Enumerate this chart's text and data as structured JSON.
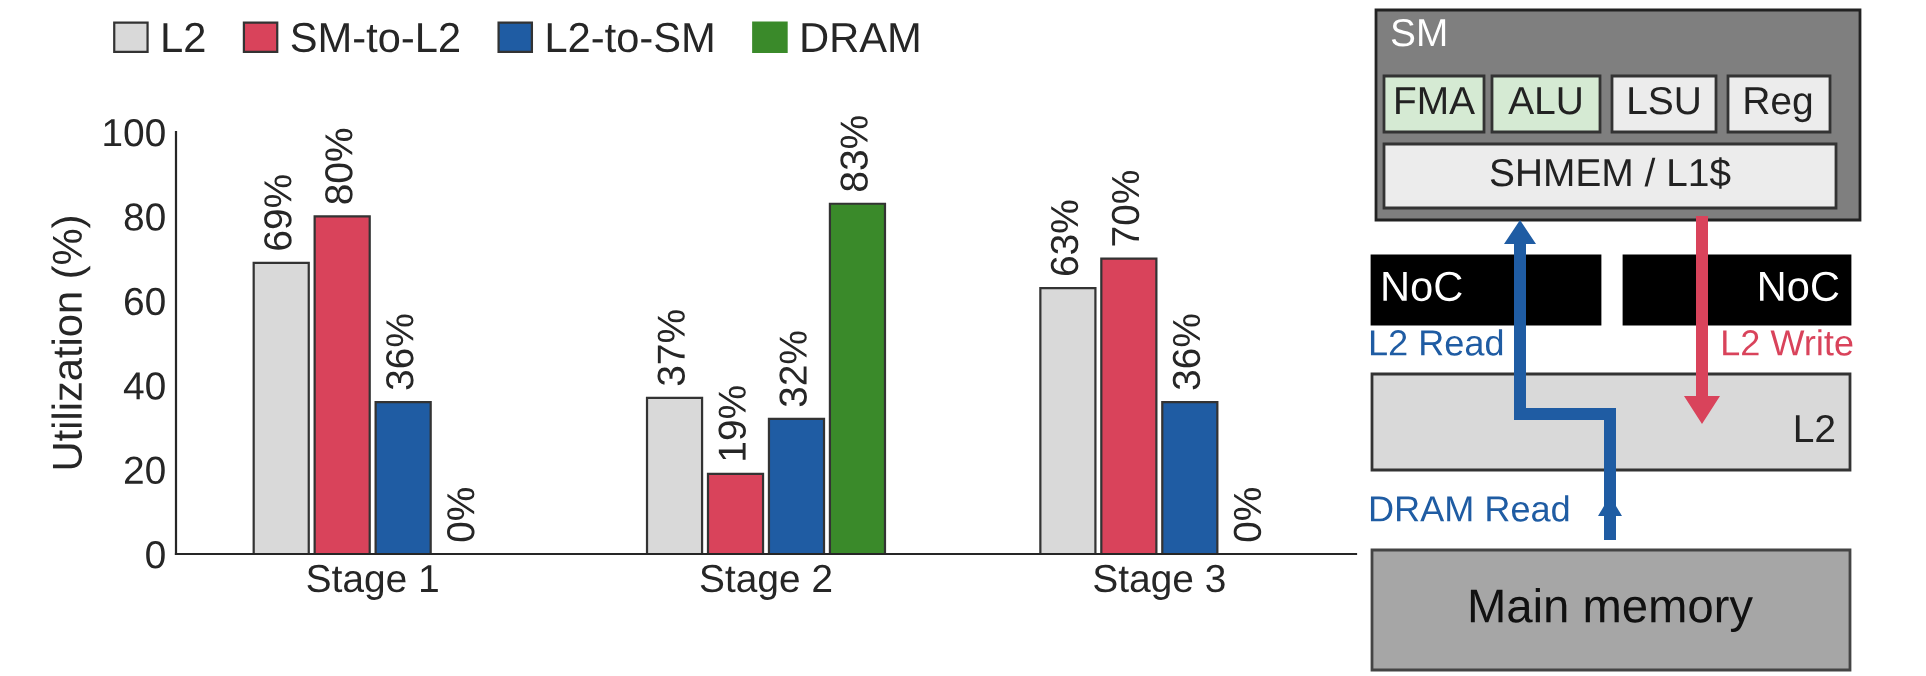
{
  "chart_data": [
    {
      "type": "bar",
      "ylabel": "Utilization (%)",
      "categories": [
        "Stage 1",
        "Stage 2",
        "Stage 3"
      ],
      "ylim": [
        0,
        100
      ],
      "yticks": [
        0,
        20,
        40,
        60,
        80,
        100
      ],
      "grid": false,
      "legend": "top left",
      "series": [
        {
          "name": "L2",
          "color": "#d9d9d9",
          "values": [
            69,
            37,
            63
          ],
          "value_labels": [
            "69%",
            "37%",
            "63%"
          ]
        },
        {
          "name": "SM-to-L2",
          "color": "#d9435b",
          "values": [
            80,
            19,
            70
          ],
          "value_labels": [
            "80%",
            "19%",
            "70%"
          ]
        },
        {
          "name": "L2-to-SM",
          "color": "#1f5ca3",
          "values": [
            36,
            32,
            36
          ],
          "value_labels": [
            "36%",
            "32%",
            "36%"
          ]
        },
        {
          "name": "DRAM",
          "color": "#3a8a2a",
          "values": [
            0,
            83,
            0
          ],
          "value_labels": [
            "0%",
            "83%",
            "0%"
          ]
        }
      ]
    },
    {
      "type": "other",
      "annotations": [
        "SM",
        "FMA",
        "ALU",
        "LSU",
        "Reg",
        "SHMEM / L1$",
        "NoC",
        "NoC",
        "L2 Read",
        "L2 Write",
        "L2",
        "DRAM Read",
        "Main memory"
      ]
    }
  ]
}
